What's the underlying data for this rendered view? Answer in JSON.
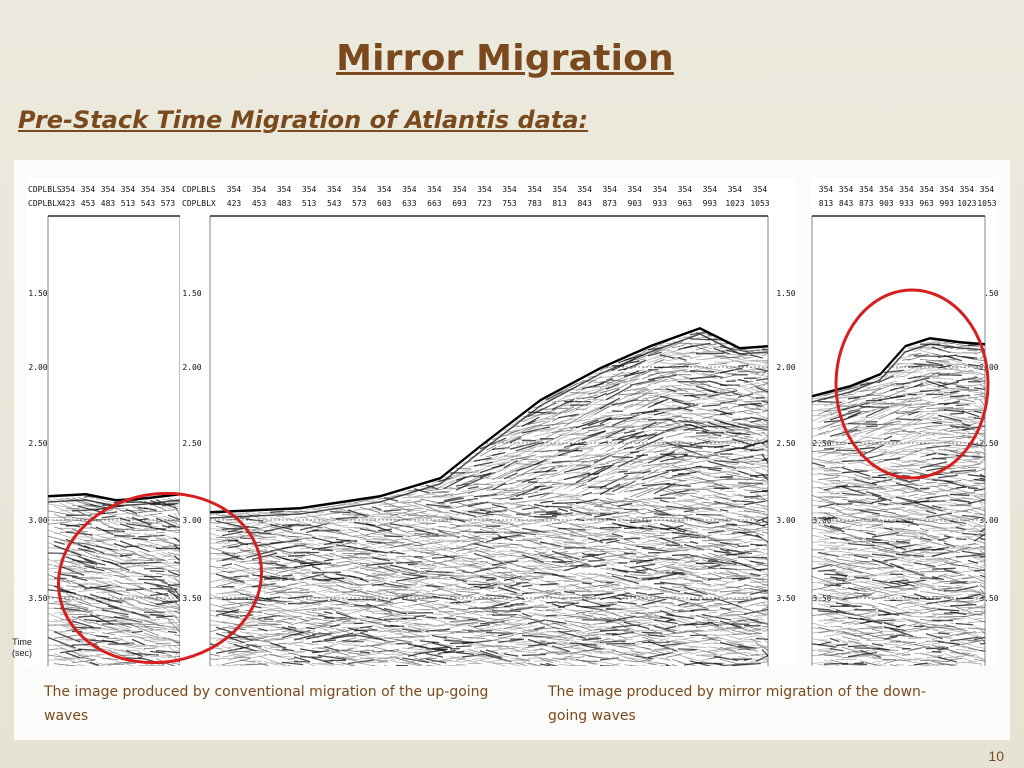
{
  "slide": {
    "title": "Mirror Migration",
    "subtitle": "Pre-Stack Time Migration of Atlantis data:",
    "caption_left": "The image produced by conventional migration of the up-going waves",
    "caption_right": "The image produced by mirror migration of the down-going waves",
    "page_number": "10",
    "time_axis_label_line1": "Time",
    "time_axis_label_line2": "(sec)"
  },
  "panels": {
    "left": {
      "header_labels": [
        "CDPLBLS",
        "CDPLBLX"
      ],
      "line_values": [
        "354",
        "354",
        "354",
        "354",
        "354",
        "354"
      ],
      "cdp_values": [
        "423",
        "453",
        "483",
        "513",
        "543",
        "573"
      ],
      "time_ticks": [
        "1.50",
        "2.00",
        "2.50",
        "3.00",
        "3.50"
      ]
    },
    "middle": {
      "header_labels": [
        "CDPLBLS",
        "CDPLBLX"
      ],
      "line_values": [
        "354",
        "354",
        "354",
        "354",
        "354",
        "354",
        "354",
        "354",
        "354",
        "354",
        "354",
        "354",
        "354",
        "354",
        "354",
        "354",
        "354",
        "354",
        "354",
        "354",
        "354",
        "354"
      ],
      "cdp_values": [
        "423",
        "453",
        "483",
        "513",
        "543",
        "573",
        "603",
        "633",
        "663",
        "693",
        "723",
        "753",
        "783",
        "813",
        "843",
        "873",
        "903",
        "933",
        "963",
        "993",
        "1023",
        "1053"
      ],
      "time_ticks": [
        "1.50",
        "2.00",
        "2.50",
        "3.00",
        "3.50"
      ]
    },
    "right": {
      "line_values": [
        "354",
        "354",
        "354",
        "354",
        "354",
        "354",
        "354",
        "354",
        "354"
      ],
      "cdp_values": [
        "813",
        "843",
        "873",
        "903",
        "933",
        "963",
        "993",
        "1023",
        "1053"
      ],
      "time_ticks": [
        "1.50",
        "2.00",
        "2.50",
        "3.00",
        "3.50"
      ]
    }
  },
  "colors": {
    "accent": "#7a4a1e",
    "highlight_circle": "#d81e1e"
  }
}
